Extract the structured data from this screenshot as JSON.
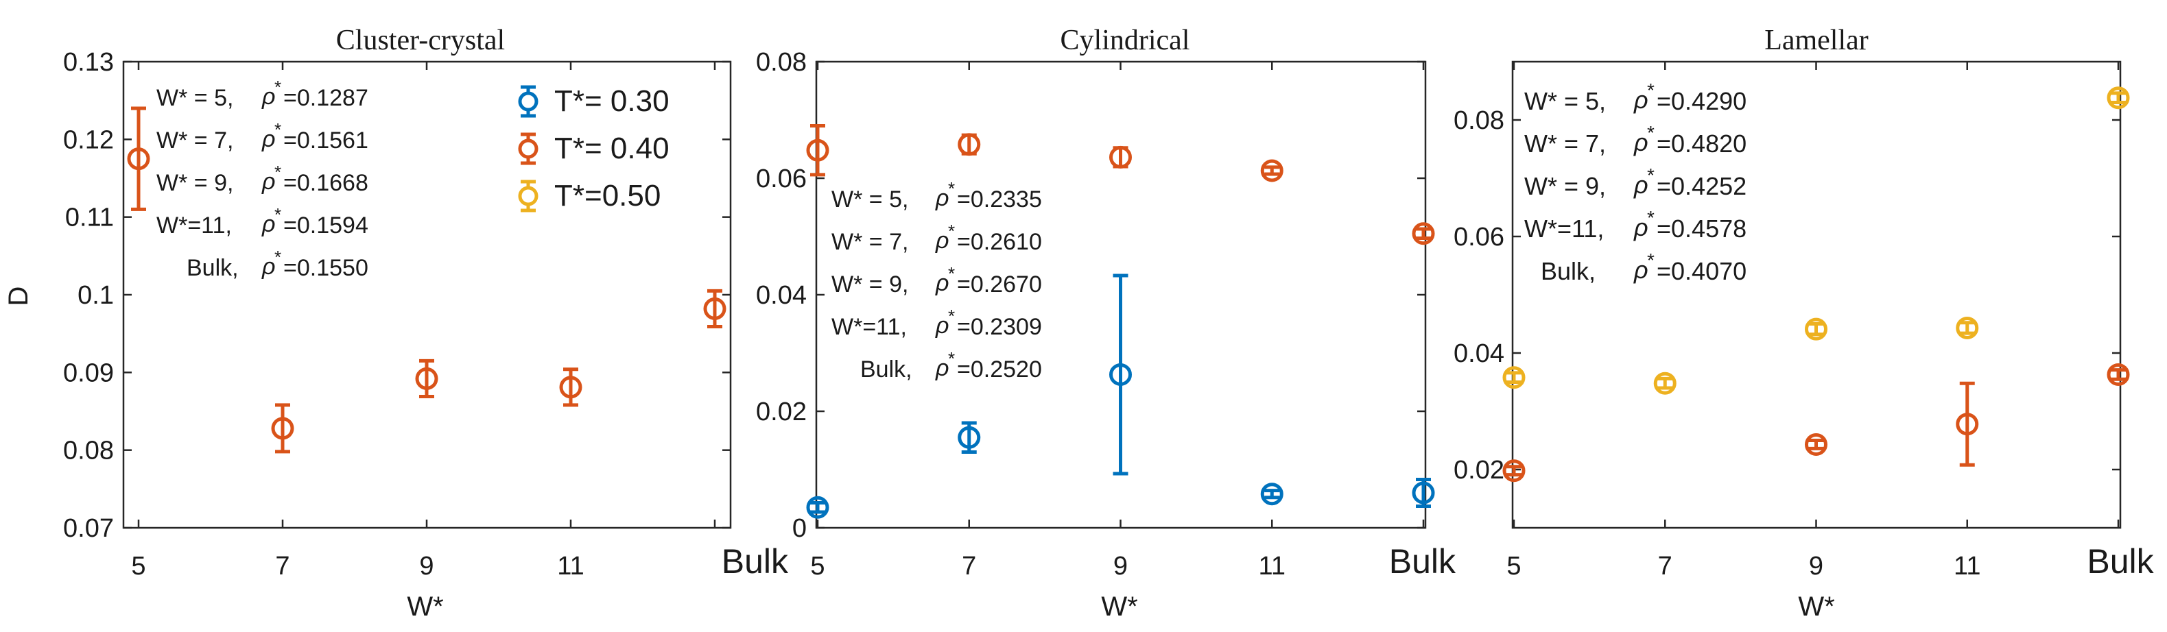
{
  "colors": {
    "T030": "#0072BD",
    "T040": "#D95319",
    "T050": "#EDB120"
  },
  "legend": [
    {
      "label": "T*= 0.30",
      "color": "#0072BD"
    },
    {
      "label": "T*= 0.40",
      "color": "#D95319"
    },
    {
      "label": "T*=0.50",
      "color": "#EDB120"
    }
  ],
  "chart_data": [
    {
      "type": "scatter",
      "title": "Cluster-crystal",
      "xlabel": "W*",
      "ylabel": "D",
      "categories": [
        "5",
        "7",
        "9",
        "11",
        "Bulk"
      ],
      "ylim": [
        0.07,
        0.13
      ],
      "yticks": [
        "0.07",
        "0.08",
        "0.09",
        "0.1",
        "0.11",
        "0.12",
        "0.13"
      ],
      "grid": false,
      "annotations": [
        "W* = 5,",
        "W* = 7,",
        "W* = 9,",
        "W*=11,",
        "Bulk,"
      ],
      "annotation_values": [
        "=0.1287",
        "=0.1561",
        "=0.1668",
        "=0.1594",
        "=0.1550"
      ],
      "series": [
        {
          "name": "T*= 0.40",
          "color": "#D95319",
          "points": [
            {
              "x": "5",
              "y": 0.1175,
              "err": 0.0065
            },
            {
              "x": "7",
              "y": 0.0828,
              "err": 0.003
            },
            {
              "x": "9",
              "y": 0.0892,
              "err": 0.0023
            },
            {
              "x": "11",
              "y": 0.0881,
              "err": 0.0023
            },
            {
              "x": "Bulk",
              "y": 0.0982,
              "err": 0.0023
            }
          ]
        }
      ]
    },
    {
      "type": "scatter",
      "title": "Cylindrical",
      "xlabel": "W*",
      "ylabel": "",
      "categories": [
        "5",
        "7",
        "9",
        "11",
        "Bulk"
      ],
      "ylim": [
        0,
        0.08
      ],
      "yticks": [
        "0",
        "0.02",
        "0.04",
        "0.06",
        "0.08"
      ],
      "grid": false,
      "annotations": [
        "W* = 5,",
        "W* = 7,",
        "W* = 9,",
        "W*=11,",
        "Bulk,"
      ],
      "annotation_values": [
        "=0.2335",
        "=0.2610",
        "=0.2670",
        "=0.2309",
        "=0.2520"
      ],
      "series": [
        {
          "name": "T*= 0.30",
          "color": "#0072BD",
          "points": [
            {
              "x": "5",
              "y": 0.0035,
              "err": 0.0008
            },
            {
              "x": "7",
              "y": 0.0155,
              "err": 0.0025
            },
            {
              "x": "9",
              "y": 0.0263,
              "err": 0.017
            },
            {
              "x": "11",
              "y": 0.0058,
              "err": 0.0006
            },
            {
              "x": "Bulk",
              "y": 0.006,
              "err": 0.0023
            }
          ]
        },
        {
          "name": "T*= 0.40",
          "color": "#D95319",
          "points": [
            {
              "x": "5",
              "y": 0.0648,
              "err": 0.0042
            },
            {
              "x": "7",
              "y": 0.0658,
              "err": 0.0016
            },
            {
              "x": "9",
              "y": 0.0636,
              "err": 0.0016
            },
            {
              "x": "11",
              "y": 0.0613,
              "err": 0.0006
            },
            {
              "x": "Bulk",
              "y": 0.0505,
              "err": 0.0008
            }
          ]
        }
      ]
    },
    {
      "type": "scatter",
      "title": "Lamellar",
      "xlabel": "W*",
      "ylabel": "",
      "categories": [
        "5",
        "7",
        "9",
        "11",
        "Bulk"
      ],
      "ylim": [
        0.01,
        0.09
      ],
      "yticks": [
        "0.02",
        "0.04",
        "0.06",
        "0.08"
      ],
      "grid": false,
      "annotations": [
        "W* = 5,",
        "W* = 7,",
        "W* = 9,",
        "W*=11,",
        "Bulk,"
      ],
      "annotation_values": [
        "=0.4290",
        "=0.4820",
        "=0.4252",
        "=0.4578",
        "=0.4070"
      ],
      "series": [
        {
          "name": "T*= 0.40",
          "color": "#D95319",
          "points": [
            {
              "x": "5",
              "y": 0.0198,
              "err": 0.0007
            },
            {
              "x": "9",
              "y": 0.0243,
              "err": 0.0007
            },
            {
              "x": "11",
              "y": 0.0278,
              "err": 0.007
            },
            {
              "x": "Bulk",
              "y": 0.0363,
              "err": 0.0008
            }
          ]
        },
        {
          "name": "T*=0.50",
          "color": "#EDB120",
          "points": [
            {
              "x": "5",
              "y": 0.0358,
              "err": 0.0008
            },
            {
              "x": "7",
              "y": 0.0348,
              "err": 0.0008
            },
            {
              "x": "9",
              "y": 0.0441,
              "err": 0.0009
            },
            {
              "x": "11",
              "y": 0.0443,
              "err": 0.0009
            },
            {
              "x": "Bulk",
              "y": 0.0838,
              "err": 0.0008
            }
          ]
        }
      ]
    }
  ]
}
